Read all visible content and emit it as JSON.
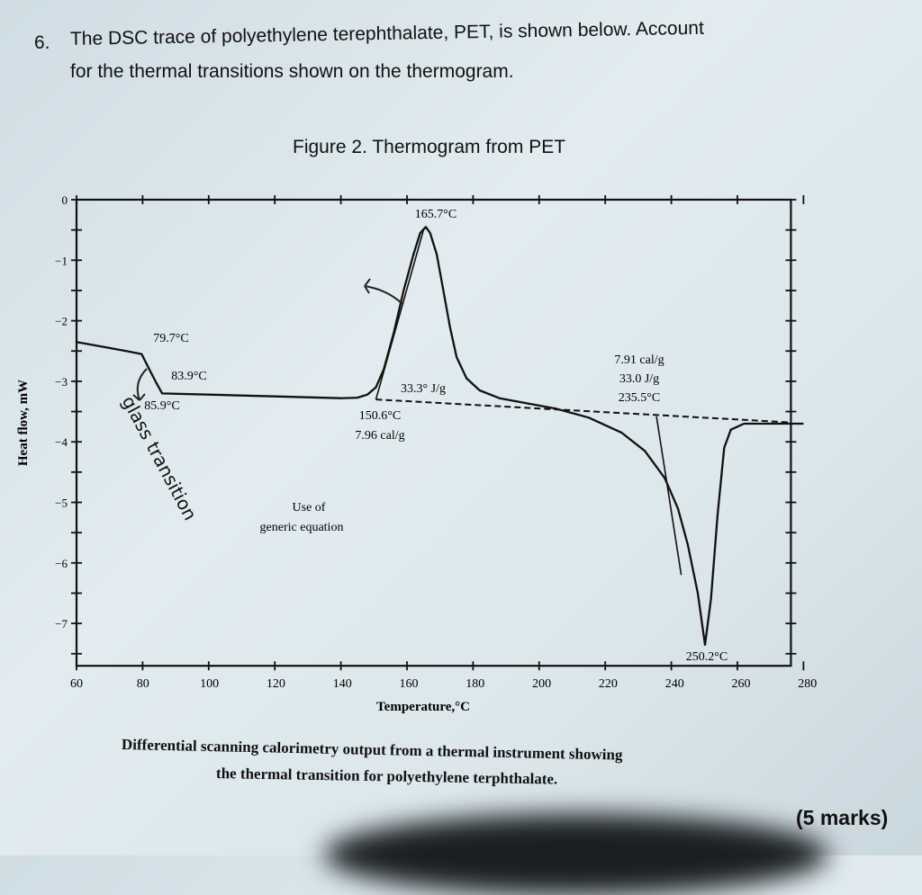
{
  "question": {
    "number": "6.",
    "line1": "The DSC trace of polyethylene terephthalate, PET, is shown below. Account",
    "line2": "for the thermal transitions shown on the thermogram.",
    "marks": "(5 marks)"
  },
  "figure_title": "Figure 2. Thermogram from PET",
  "caption_line1": "Differential scanning calorimetry output from a thermal instrument showing",
  "caption_line2": "the thermal transition for polyethylene terphthalate.",
  "handwritten": {
    "glass_transition": "glass transition"
  },
  "chart_data": {
    "type": "line",
    "xlabel": "Temperature,°C",
    "ylabel": "Heat flow, mW",
    "xlim": [
      60,
      280
    ],
    "ylim": [
      -7.7,
      0
    ],
    "x_ticks": [
      "60",
      "80",
      "100",
      "120",
      "140",
      "160",
      "180",
      "200",
      "220",
      "240",
      "260",
      "280"
    ],
    "y_ticks": [
      "0",
      "-1",
      "-2",
      "-3",
      "-4",
      "-5",
      "-6",
      "-7"
    ],
    "grid": false,
    "series": [
      {
        "x": [
          60,
          70,
          75,
          79.7,
          82,
          83.9,
          85.9,
          100,
          120,
          140,
          145,
          148,
          150.6,
          153,
          156,
          159,
          162,
          164,
          165.7,
          167,
          169,
          171,
          173,
          175,
          178,
          182,
          188,
          195,
          205,
          215,
          225,
          232,
          238,
          242,
          245,
          248,
          250.2,
          252,
          254,
          256,
          258,
          262,
          270,
          280
        ],
        "y": [
          -2.35,
          -2.45,
          -2.5,
          -2.55,
          -2.8,
          -3.0,
          -3.2,
          -3.22,
          -3.25,
          -3.28,
          -3.27,
          -3.22,
          -3.1,
          -2.8,
          -2.2,
          -1.5,
          -0.9,
          -0.55,
          -0.45,
          -0.55,
          -0.9,
          -1.5,
          -2.1,
          -2.6,
          -2.95,
          -3.15,
          -3.28,
          -3.35,
          -3.45,
          -3.6,
          -3.85,
          -4.15,
          -4.6,
          -5.1,
          -5.7,
          -6.5,
          -7.35,
          -6.6,
          -5.2,
          -4.1,
          -3.8,
          -3.7,
          -3.7,
          -3.7
        ]
      }
    ],
    "baseline": {
      "x": [
        150.6,
        280
      ],
      "y": [
        -3.3,
        -3.68
      ]
    },
    "annotations": [
      {
        "text": "79.7°C",
        "x": 79.7,
        "y": -2.55
      },
      {
        "text": "83.9°C",
        "x": 83.9,
        "y": -3.0
      },
      {
        "text": "85.9°C",
        "x": 85.9,
        "y": -3.2
      },
      {
        "text": "165.7°C",
        "x": 165.7,
        "y": -0.45
      },
      {
        "text": "33.3° J/g"
      },
      {
        "text": "150.6°C"
      },
      {
        "text": "7.96 cal/g"
      },
      {
        "text": "7.91 cal/g"
      },
      {
        "text": "33.0 J/g"
      },
      {
        "text": "235.5°C"
      },
      {
        "text": "250.2°C",
        "x": 250.2,
        "y": -7.35
      },
      {
        "text": "Use of"
      },
      {
        "text": "generic equation"
      }
    ]
  }
}
